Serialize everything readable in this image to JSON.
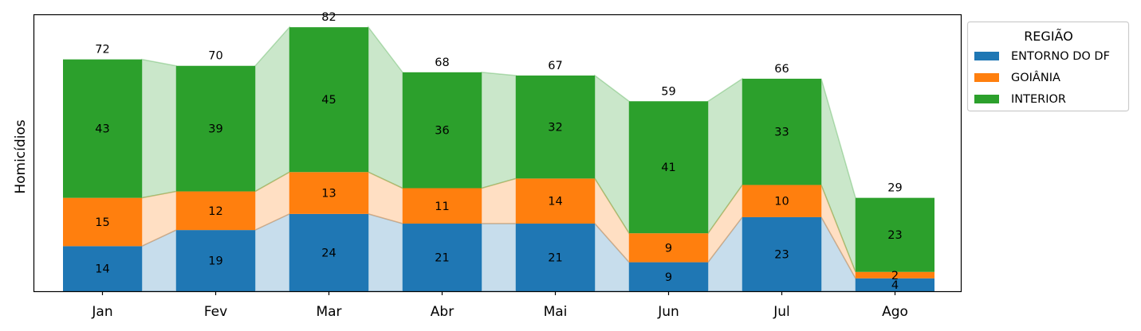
{
  "chart_data": {
    "type": "bar",
    "stacked": true,
    "categories": [
      "Jan",
      "Fev",
      "Mar",
      "Abr",
      "Mai",
      "Jun",
      "Jul",
      "Ago"
    ],
    "series": [
      {
        "name": "ENTORNO DO DF",
        "color": "#1f77b4",
        "values": [
          14,
          19,
          24,
          21,
          21,
          9,
          23,
          4
        ]
      },
      {
        "name": "GOIÂNIA",
        "color": "#ff7f0e",
        "values": [
          15,
          12,
          13,
          11,
          14,
          9,
          10,
          2
        ]
      },
      {
        "name": "INTERIOR",
        "color": "#2ca02c",
        "values": [
          43,
          39,
          45,
          36,
          32,
          41,
          33,
          23
        ]
      }
    ],
    "totals": [
      72,
      70,
      82,
      68,
      67,
      59,
      66,
      29
    ],
    "ylabel": "Homicídios",
    "xlabel": "",
    "ylim": [
      0,
      86
    ],
    "y_ticks_shown": false,
    "grid": false,
    "connecting_areas": true,
    "legend": {
      "title": "REGIÃO",
      "position": "outside-right-top"
    }
  }
}
